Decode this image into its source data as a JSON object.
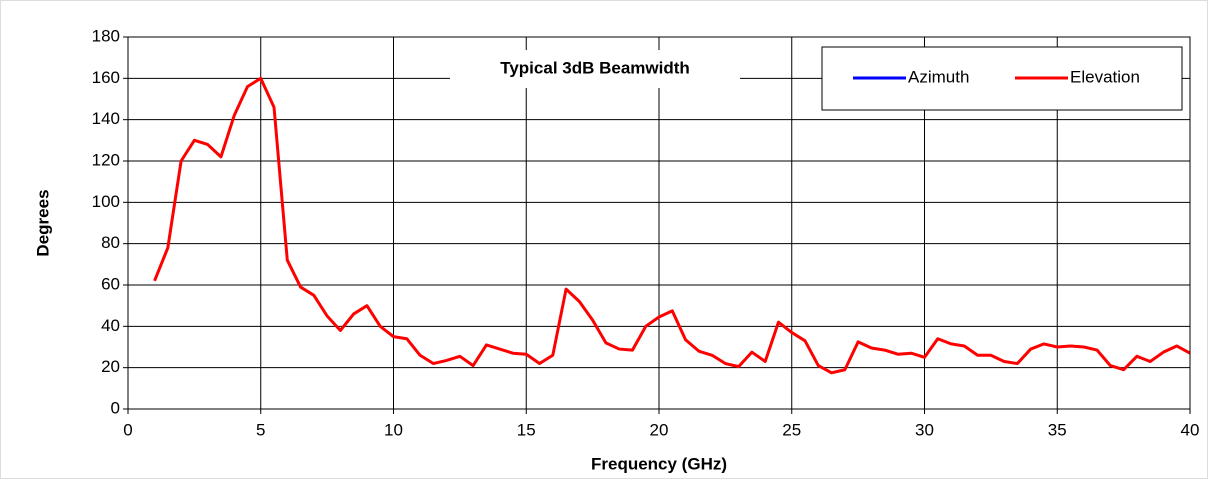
{
  "chart_data": {
    "type": "line",
    "title": "Typical 3dB Beamwidth",
    "xlabel": "Frequency (GHz)",
    "ylabel": "Degrees",
    "x": [
      1,
      1.5,
      2,
      2.5,
      3,
      3.5,
      4,
      4.5,
      5,
      5.5,
      6,
      6.5,
      7,
      7.5,
      8,
      8.5,
      9,
      9.5,
      10,
      10.5,
      11,
      11.5,
      12,
      12.5,
      13,
      13.5,
      14,
      14.5,
      15,
      15.5,
      16,
      16.5,
      17,
      17.5,
      18,
      18.5,
      19,
      19.5,
      20,
      20.5,
      21,
      21.5,
      22,
      22.5,
      23,
      23.5,
      24,
      24.5,
      25,
      25.5,
      26,
      26.5,
      27,
      27.5,
      28,
      28.5,
      29,
      29.5,
      30,
      30.5,
      31,
      31.5,
      32,
      32.5,
      33,
      33.5,
      34,
      34.5,
      35,
      35.5,
      36,
      36.5,
      37,
      37.5,
      38,
      38.5,
      39,
      39.5,
      40
    ],
    "series": [
      {
        "name": "Azimuth",
        "color": "#0000ff",
        "values": [
          null,
          null,
          null,
          null,
          null,
          null,
          null,
          null,
          null,
          null,
          null,
          null,
          null,
          null,
          null,
          null,
          null,
          null,
          null,
          null,
          null,
          null,
          null,
          null,
          null,
          null,
          null,
          null,
          null,
          null,
          null,
          null,
          null,
          null,
          null,
          null,
          null,
          null,
          null,
          null,
          null,
          null,
          null,
          null,
          null,
          null,
          null,
          null,
          null,
          null,
          null,
          null,
          null,
          null,
          null,
          null,
          null,
          null,
          null,
          null,
          null,
          null,
          null,
          null,
          null,
          null,
          null,
          null,
          null,
          null,
          null,
          null,
          null,
          null,
          null,
          null,
          null,
          null,
          null
        ]
      },
      {
        "name": "Elevation",
        "color": "#ff0000",
        "values": [
          62,
          78,
          120,
          130,
          128,
          122,
          142,
          156,
          160,
          146,
          72,
          59,
          55,
          45,
          38,
          46,
          50,
          40,
          35,
          34,
          26,
          22,
          23.5,
          25.5,
          21,
          31,
          29,
          27,
          26.5,
          22,
          26,
          58,
          52,
          43,
          32,
          29,
          28.5,
          40,
          44.5,
          47.5,
          33.5,
          28,
          26,
          22,
          20.5,
          27.5,
          23,
          42,
          37,
          33,
          21,
          17.5,
          19,
          32.5,
          29.5,
          28.5,
          26.5,
          27,
          25,
          34,
          31.5,
          30.5,
          26,
          26,
          23,
          22,
          29,
          31.5,
          30,
          30.5,
          30,
          28.5,
          21,
          19,
          25.5,
          23,
          27.5,
          30.5,
          27
        ]
      }
    ],
    "xlim": [
      0,
      40
    ],
    "xticks": [
      0,
      5,
      10,
      15,
      20,
      25,
      30,
      35,
      40
    ],
    "ylim": [
      0,
      180
    ],
    "yticks": [
      0,
      20,
      40,
      60,
      80,
      100,
      120,
      140,
      160,
      180
    ],
    "grid": true,
    "legend": "upper right"
  }
}
